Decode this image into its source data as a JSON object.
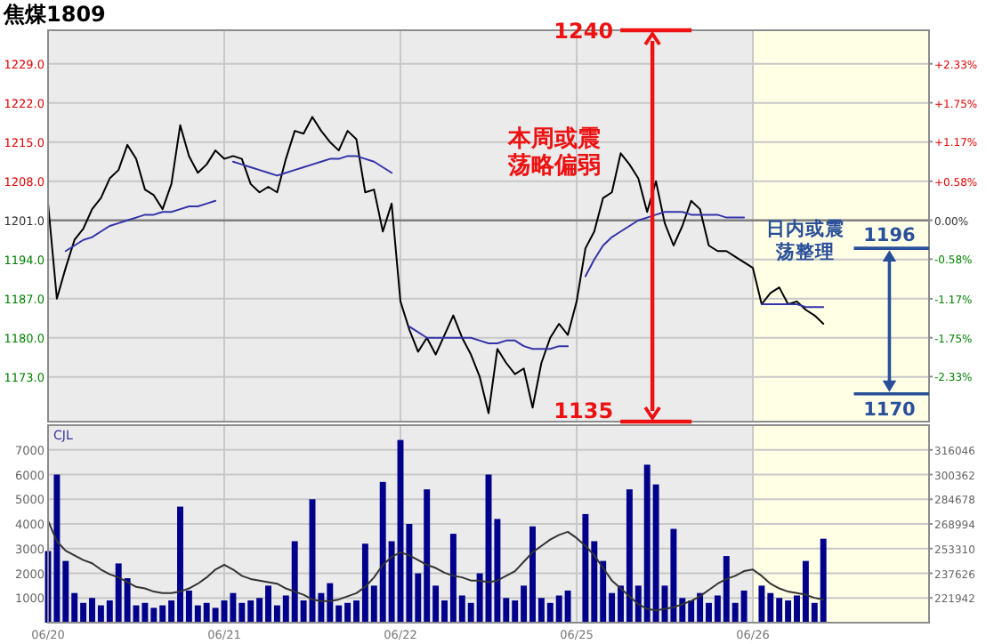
{
  "chart_data": [
    {
      "type": "line",
      "title": "焦煤1809",
      "ylim": [
        1165,
        1235
      ],
      "y2lim": [
        -3.0,
        2.83
      ],
      "categories": [
        null,
        null,
        null,
        null,
        null,
        null,
        null,
        null,
        null,
        null,
        null,
        null,
        null,
        null,
        null,
        null,
        null,
        null,
        null,
        null,
        null,
        null,
        null,
        null,
        null,
        null,
        null,
        null,
        null,
        null,
        null,
        null,
        null,
        null,
        null,
        null,
        null,
        null,
        null,
        null,
        null,
        null,
        null,
        null,
        null,
        null,
        null,
        null,
        null,
        null,
        null,
        null,
        null,
        null,
        null,
        null,
        null,
        null,
        null,
        null,
        null,
        null,
        null,
        null,
        null,
        null,
        null,
        null,
        null,
        null,
        null,
        null,
        null,
        null,
        null,
        null,
        null,
        null,
        null,
        null,
        null,
        null,
        null,
        null,
        null,
        null,
        null,
        null,
        null,
        null,
        null,
        null,
        null,
        null,
        null,
        null,
        null,
        null,
        null,
        null
      ],
      "yticks": [
        {
          "value": 1229,
          "label": "1229.0"
        },
        {
          "value": 1222,
          "label": "1222.0"
        },
        {
          "value": 1215,
          "label": "1215.0"
        },
        {
          "value": 1208,
          "label": "1208.0"
        },
        {
          "value": 1201,
          "label": "1201.0"
        },
        {
          "value": 1194,
          "label": "1194.0"
        },
        {
          "value": 1187,
          "label": "1187.0"
        },
        {
          "value": 1180,
          "label": "1180.0"
        },
        {
          "value": 1173,
          "label": "1173.0"
        }
      ],
      "y2ticks": [
        {
          "value": 2.33,
          "label": "+2.33%"
        },
        {
          "value": 1.75,
          "label": "+1.75%"
        },
        {
          "value": 1.17,
          "label": "+1.17%"
        },
        {
          "value": 0.58,
          "label": "+0.58%"
        },
        {
          "value": 0,
          "label": "0.00%"
        },
        {
          "value": -0.58,
          "label": "-0.58%"
        },
        {
          "value": -1.17,
          "label": "-1.17%"
        },
        {
          "value": -1.75,
          "label": "-1.75%"
        },
        {
          "value": -2.33,
          "label": "-2.33%"
        }
      ],
      "tick_labels": "y",
      "grid": true,
      "ref_lines": [
        {
          "axis": "y",
          "value": 1201,
          "color": "#808080"
        }
      ],
      "series": [
        {
          "color": "#000000",
          "values": [
            1204,
            1187,
            1192.5,
            1197.5,
            1199.5,
            1203,
            1205,
            1208.5,
            1210,
            1214.5,
            1212,
            1206.5,
            1205.5,
            1203,
            1207.5,
            1218,
            1212.5,
            1209.5,
            1211,
            1213.5,
            1212,
            1212.5,
            1212,
            1207.5,
            1206,
            1207,
            1206,
            1212,
            1217,
            1216.5,
            1219.5,
            1217,
            1215,
            1213.5,
            1217,
            1215.5,
            1206,
            1206.5,
            1199,
            1204,
            1186.5,
            1181.5,
            1177.5,
            1180,
            1177,
            1180.5,
            1184,
            1180,
            1177,
            1173,
            1166.5,
            1178,
            1175.5,
            1173.5,
            1174.5,
            1167.5,
            1175.5,
            1180,
            1182.5,
            1180.5,
            1186.5,
            1196,
            1199,
            1205,
            1206,
            1213,
            1211,
            1208.5,
            1202.5,
            1208,
            1200.5,
            1196.5,
            1200,
            1204.5,
            1203,
            1196.5,
            1195.5,
            1195.5,
            1194.5,
            1193.5,
            1192.5,
            1186,
            1188,
            1189,
            1186,
            1186.5,
            1185,
            1184,
            1182.5,
            null,
            null,
            null,
            null,
            null,
            null,
            null,
            null,
            null,
            null,
            null
          ]
        },
        {
          "color": "#3333aa",
          "values": [
            null,
            null,
            1195.5,
            1196.5,
            1197.5,
            1198,
            1199,
            1200,
            1200.5,
            1201,
            1201.5,
            1202,
            1202,
            1202.5,
            1202.5,
            1203,
            1203.5,
            1203.5,
            1204,
            1204.5,
            null,
            1211.5,
            1211,
            1210.5,
            1210,
            1209.5,
            1209,
            1209.5,
            1210,
            1210.5,
            1211,
            1211.5,
            1212,
            1212,
            1212.5,
            1212.5,
            1212,
            1211.5,
            1210.5,
            1209.5,
            null,
            1182,
            1181,
            1180,
            1180,
            1180,
            1180,
            1180,
            1180,
            1179.5,
            1179,
            1179,
            1179.5,
            1179.5,
            1178.5,
            1178,
            1178,
            1178,
            1178.5,
            1178.5,
            null,
            1191,
            1194,
            1196.5,
            1198,
            1199,
            1200,
            1201,
            1201.5,
            1202,
            1202.5,
            1202.5,
            1202.5,
            1202,
            1202,
            1202,
            1202,
            1201.5,
            1201.5,
            1201.5,
            null,
            1186,
            1186,
            1186,
            1186,
            1186,
            1185.5,
            1185.5,
            1185.5,
            null,
            null,
            null,
            null,
            null,
            null,
            null,
            null,
            null,
            null,
            null
          ]
        }
      ],
      "annotations": [
        "本周或震荡略偏弱",
        "1240",
        "1135",
        "日内或震荡整理",
        "1196",
        "1170"
      ]
    },
    {
      "type": "bar",
      "title": "CJL",
      "ylim": [
        0,
        8000
      ],
      "y2lim": [
        206258,
        331730
      ],
      "categories": [
        "06/20",
        null,
        null,
        null,
        null,
        null,
        null,
        null,
        null,
        null,
        null,
        null,
        null,
        null,
        null,
        null,
        null,
        null,
        null,
        null,
        "06/21",
        null,
        null,
        null,
        null,
        null,
        null,
        null,
        null,
        null,
        null,
        null,
        null,
        null,
        null,
        null,
        null,
        null,
        null,
        null,
        "06/22",
        null,
        null,
        null,
        null,
        null,
        null,
        null,
        null,
        null,
        null,
        null,
        null,
        null,
        null,
        null,
        null,
        null,
        null,
        null,
        "06/25",
        null,
        null,
        null,
        null,
        null,
        null,
        null,
        null,
        null,
        null,
        null,
        null,
        null,
        null,
        null,
        null,
        null,
        null,
        null,
        "06/26",
        null,
        null,
        null,
        null,
        null,
        null,
        null,
        null,
        null,
        null,
        null,
        null,
        null,
        null,
        null,
        null,
        null,
        null,
        null
      ],
      "yticks": [
        1000,
        2000,
        3000,
        4000,
        5000,
        6000,
        7000
      ],
      "y2ticks": [
        221942,
        237626,
        253310,
        268994,
        284678,
        300362,
        316046
      ],
      "grid": true,
      "series": [
        {
          "color": "#00008b",
          "values": [
            2900,
            6000,
            2500,
            1200,
            800,
            1000,
            700,
            900,
            2400,
            1800,
            700,
            800,
            600,
            700,
            900,
            4700,
            1300,
            700,
            800,
            600,
            900,
            1200,
            800,
            900,
            1000,
            1500,
            700,
            1100,
            3300,
            900,
            5000,
            1200,
            1600,
            700,
            800,
            900,
            3200,
            1500,
            5700,
            3300,
            7400,
            4000,
            2000,
            5400,
            1500,
            900,
            3600,
            1100,
            800,
            2000,
            6000,
            4200,
            1000,
            900,
            1500,
            3900,
            1000,
            800,
            1100,
            1300,
            null,
            4400,
            3300,
            2500,
            1200,
            1500,
            5400,
            1500,
            6400,
            5600,
            1500,
            3800,
            1000,
            900,
            1200,
            800,
            1100,
            2700,
            800,
            1300,
            null,
            1500,
            1200,
            1000,
            900,
            1100,
            2500,
            800,
            3400,
            null,
            null,
            null,
            null,
            null,
            null,
            null,
            null,
            null,
            null,
            null
          ]
        },
        {
          "type": "line",
          "axis": "y2",
          "color": "#333333",
          "values": [
            271000,
            258000,
            252000,
            249000,
            246000,
            244000,
            240000,
            237000,
            235000,
            232000,
            229000,
            228000,
            226000,
            225000,
            225000,
            226000,
            228000,
            231000,
            235000,
            240000,
            243000,
            240000,
            236000,
            234000,
            233000,
            232000,
            231000,
            228000,
            226000,
            224000,
            221000,
            220000,
            220000,
            221000,
            223000,
            225000,
            229000,
            235000,
            243000,
            248000,
            251000,
            249000,
            246000,
            243000,
            241000,
            238000,
            236000,
            235000,
            233000,
            233000,
            232000,
            233000,
            236000,
            239000,
            245000,
            251000,
            255000,
            259000,
            262000,
            264000,
            260000,
            255000,
            249000,
            241000,
            233000,
            228000,
            223000,
            218000,
            215000,
            214000,
            215000,
            216000,
            218000,
            220000,
            223000,
            227000,
            231000,
            234000,
            236000,
            239000,
            240000,
            236000,
            231000,
            228000,
            226000,
            225000,
            224000,
            222000,
            221000,
            null,
            null,
            null,
            null,
            null,
            null,
            null,
            null,
            null,
            null,
            null
          ]
        }
      ]
    }
  ]
}
